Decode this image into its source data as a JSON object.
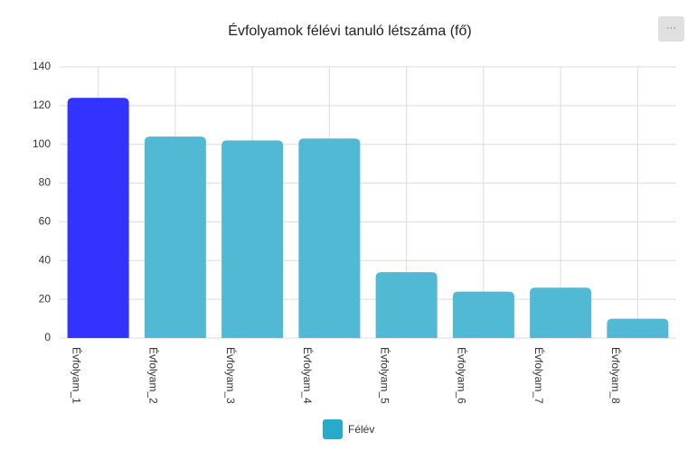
{
  "menu": "···",
  "chart_data": {
    "type": "bar",
    "title": "Évfolyamok félévi tanuló létszáma (fő)",
    "categories": [
      "Évfolyam_1",
      "Évfolyam_2",
      "Évfolyam_3",
      "Évfolyam_4",
      "Évfolyam_5",
      "Évfolyam_6",
      "Évfolyam_7",
      "Évfolyam_8"
    ],
    "series": [
      {
        "name": "Félév",
        "color": "#29a9cc",
        "values": [
          124,
          104,
          102,
          103,
          34,
          24,
          26,
          10
        ],
        "bar_colors": [
          "#3333ff",
          "#52b9d4",
          "#52b9d4",
          "#52b9d4",
          "#52b9d4",
          "#52b9d4",
          "#52b9d4",
          "#52b9d4"
        ]
      }
    ],
    "ylim": [
      0,
      140
    ],
    "yticks": [
      0,
      20,
      40,
      60,
      80,
      100,
      120,
      140
    ],
    "grid": true
  }
}
